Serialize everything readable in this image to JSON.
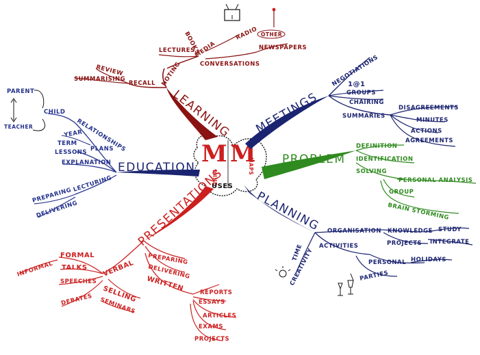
{
  "colors": {
    "red": "#cc1f1f",
    "darkred": "#8a1212",
    "navy": "#1b2470",
    "blue": "#23318c",
    "green": "#2f8a1f",
    "ink": "#111111"
  },
  "center": {
    "m_left": "M",
    "m_right": "M",
    "mind": "MIND",
    "maps": "MAPS",
    "uses": "USES"
  },
  "learning": {
    "title": "LEARNING",
    "noting": "NOTING",
    "recall": "RECALL",
    "review": "REVIEW",
    "summarising": "SUMMARISING",
    "lectures": "LECTURES",
    "media": "MEDIA",
    "books": "BOOKS",
    "conversations": "CONVERSATIONS",
    "radio": "RADIO",
    "other": "OTHER",
    "newspapers": "NEWSPAPERS"
  },
  "meetings": {
    "title": "MEETINGS",
    "negotiations": "NEGOTIATIONS",
    "one_to_one": "1@1",
    "groups": "GROUPS",
    "chairing": "CHAIRING",
    "summaries": "SUMMARIES",
    "disagreements": "DISAGREEMENTS",
    "minutes": "MINUTES",
    "actions": "ACTIONS",
    "agreements": "AGREEMENTS"
  },
  "problem": {
    "title": "PROBLEM",
    "definition": "DEFINITION",
    "identification": "IDENTIFICATION",
    "solving": "SOLVING",
    "personal_analysis": "PERSONAL ANALYSIS",
    "group": "GROUP",
    "brain_storming": "BRAIN STORMING"
  },
  "planning": {
    "title": "PLANNING",
    "organisation": "ORGANISATION",
    "knowledge": "KNOWLEDGE",
    "study": "STUDY",
    "projects": "PROJECTS",
    "integrate": "INTEGRATE",
    "activities": "ACTIVITIES",
    "personal": "PERSONAL",
    "holidays": "HOLIDAYS",
    "parties": "PARTIES",
    "time": "TIME",
    "creativity": "CREATIVITY"
  },
  "presentations": {
    "title": "PRESENTATIONS",
    "preparing": "PREPARING",
    "delivering": "DELIVERING",
    "written": "WRITTEN",
    "reports": "REPORTS",
    "essays": "ESSAYS",
    "articles": "ARTICLES",
    "exams": "EXAMS",
    "projects": "PROJECTS",
    "verbal": "VERBAL",
    "formal": "FORMAL",
    "informal": "INFORMAL",
    "talks": "TALKS",
    "speeches": "SPEECHES",
    "debates": "DEBATES",
    "selling": "SELLING",
    "seminars": "SEMINARS"
  },
  "education": {
    "title": "EDUCATION",
    "relationships": "RELATIONSHIPS",
    "parent": "PARENT",
    "child": "CHILD",
    "teacher": "TEACHER",
    "year": "YEAR",
    "term": "TERM",
    "lessons": "LESSONS",
    "plans": "PLANS",
    "explanation": "EXPLANATION",
    "lecturing": "LECTURING",
    "preparing": "PREPARING",
    "delivering": "DELIVERING"
  }
}
